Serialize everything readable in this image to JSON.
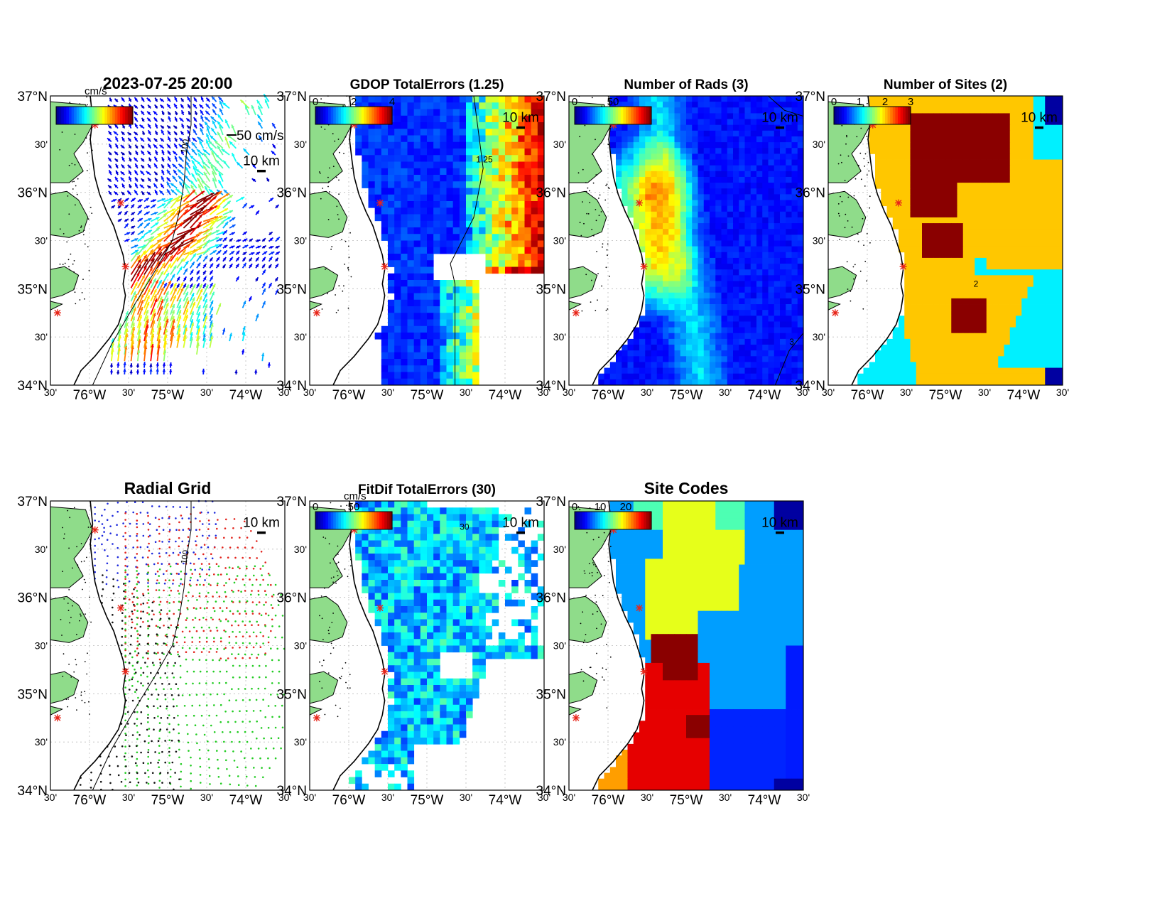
{
  "figure": {
    "timestamp": "2023-07-25 20:00"
  },
  "axes": {
    "lat_labels": [
      "37°N",
      "30'",
      "36°N",
      "30'",
      "35°N",
      "30'",
      "34°N"
    ],
    "lon_labels": [
      "30'",
      "76°W",
      "30'",
      "75°W",
      "30'",
      "74°W",
      "30'"
    ]
  },
  "labels": {
    "scale_km": "10 km",
    "vector_scale": "50 cm/s",
    "cm_s": "cm/s",
    "isobath_100": "100"
  },
  "panels": [
    {
      "id": "velocity",
      "title": "2023-07-25 20:00",
      "cbar_unit": "cm/s",
      "cbar_ticks": []
    },
    {
      "id": "gdop",
      "title": "GDOP TotalErrors (1.25)",
      "cbar_unit": "",
      "cbar_ticks": [
        "0",
        "2",
        "4"
      ],
      "contour_label": "1.25"
    },
    {
      "id": "nrads",
      "title": "Number of Rads (3)",
      "cbar_unit": "",
      "cbar_ticks": [
        "0",
        "50"
      ],
      "contour_label": "3"
    },
    {
      "id": "nsites",
      "title": "Number of Sites (2)",
      "cbar_unit": "",
      "cbar_ticks": [
        "0",
        "1",
        "2",
        "3"
      ],
      "contour_label": "2"
    },
    {
      "id": "radgrid",
      "title": "Radial Grid",
      "cbar_unit": "",
      "cbar_ticks": []
    },
    {
      "id": "fitdif",
      "title": "FitDif TotalErrors (30)",
      "cbar_unit": "cm/s",
      "cbar_ticks": [
        "0",
        "50"
      ],
      "contour_label": "30"
    },
    {
      "id": "sitecodes",
      "title": "Site Codes",
      "cbar_unit": "",
      "cbar_ticks": [
        "0",
        "10",
        "20"
      ]
    }
  ],
  "colors": {
    "land": "#8fdc8a",
    "site_marker": "#e8261a",
    "grid_site1": "#1f2bdc",
    "grid_site2": "#e2241d",
    "grid_site3": "#22cc22",
    "grid_site4": "#111111",
    "colormap": [
      "#00008f",
      "#0000ff",
      "#0080ff",
      "#00ffff",
      "#80ff80",
      "#ffff00",
      "#ff8000",
      "#ff0000",
      "#800000"
    ]
  }
}
